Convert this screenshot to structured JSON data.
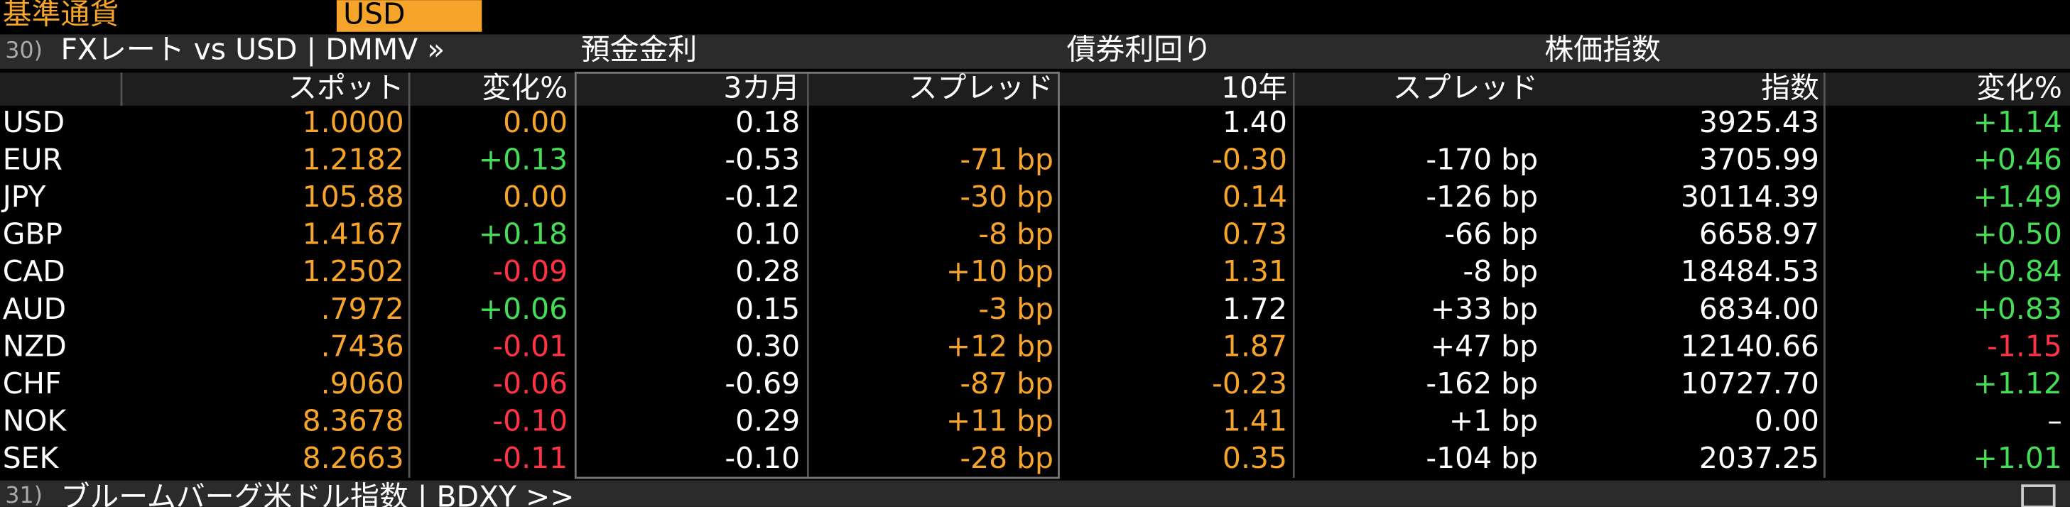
{
  "header": {
    "label": "基準通貨",
    "currency": "USD"
  },
  "sections": {
    "number": "30)",
    "fx": "FXレート vs USD | DMMV »",
    "deposit": "預金金利",
    "bond": "債券利回り",
    "equity": "株価指数"
  },
  "columns": [
    "スポット",
    "変化%",
    "3カ月",
    "スプレッド",
    "10年",
    "スプレッド",
    "指数",
    "変化%"
  ],
  "rows": [
    {
      "currency": "USD",
      "cells": [
        "1.0000",
        "0.00",
        "0.18",
        null,
        "1.40",
        null,
        "3925.43",
        "+1.14"
      ],
      "colors": [
        "#f7a52a",
        "#f7a52a",
        "#ffffff",
        null,
        "#ffffff",
        null,
        "#ffffff",
        "#44dd55"
      ]
    },
    {
      "currency": "EUR",
      "cells": [
        "1.2182",
        "+0.13",
        "-0.53",
        "-71 bp",
        "-0.30",
        "-170 bp",
        "3705.99",
        "+0.46"
      ],
      "colors": [
        "#f7a52a",
        "#44dd55",
        "#ffffff",
        "#f7a52a",
        "#f7a52a",
        "#ffffff",
        "#ffffff",
        "#44dd55"
      ]
    },
    {
      "currency": "JPY",
      "cells": [
        "105.88",
        "0.00",
        "-0.12",
        "-30 bp",
        "0.14",
        "-126 bp",
        "30114.39",
        "+1.49"
      ],
      "colors": [
        "#f7a52a",
        "#f7a52a",
        "#ffffff",
        "#f7a52a",
        "#f7a52a",
        "#ffffff",
        "#ffffff",
        "#44dd55"
      ]
    },
    {
      "currency": "GBP",
      "cells": [
        "1.4167",
        "+0.18",
        "0.10",
        "-8 bp",
        "0.73",
        "-66 bp",
        "6658.97",
        "+0.50"
      ],
      "colors": [
        "#f7a52a",
        "#44dd55",
        "#ffffff",
        "#f7a52a",
        "#f7a52a",
        "#ffffff",
        "#ffffff",
        "#44dd55"
      ]
    },
    {
      "currency": "CAD",
      "cells": [
        "1.2502",
        "-0.09",
        "0.28",
        "+10 bp",
        "1.31",
        "-8 bp",
        "18484.53",
        "+0.84"
      ],
      "colors": [
        "#f7a52a",
        "#ff3344",
        "#ffffff",
        "#f7a52a",
        "#f7a52a",
        "#ffffff",
        "#ffffff",
        "#44dd55"
      ]
    },
    {
      "currency": "AUD",
      "cells": [
        ".7972",
        "+0.06",
        "0.15",
        "-3 bp",
        "1.72",
        "+33 bp",
        "6834.00",
        "+0.83"
      ],
      "colors": [
        "#f7a52a",
        "#44dd55",
        "#ffffff",
        "#f7a52a",
        "#ffffff",
        "#ffffff",
        "#ffffff",
        "#44dd55"
      ]
    },
    {
      "currency": "NZD",
      "cells": [
        ".7436",
        "-0.01",
        "0.30",
        "+12 bp",
        "1.87",
        "+47 bp",
        "12140.66",
        "-1.15"
      ],
      "colors": [
        "#f7a52a",
        "#ff3344",
        "#ffffff",
        "#f7a52a",
        "#f7a52a",
        "#ffffff",
        "#ffffff",
        "#ff3344"
      ]
    },
    {
      "currency": "CHF",
      "cells": [
        ".9060",
        "-0.06",
        "-0.69",
        "-87 bp",
        "-0.23",
        "-162 bp",
        "10727.70",
        "+1.12"
      ],
      "colors": [
        "#f7a52a",
        "#ff3344",
        "#ffffff",
        "#f7a52a",
        "#f7a52a",
        "#ffffff",
        "#ffffff",
        "#44dd55"
      ]
    },
    {
      "currency": "NOK",
      "cells": [
        "8.3678",
        "-0.10",
        "0.29",
        "+11 bp",
        "1.41",
        "+1 bp",
        "0.00",
        "–"
      ],
      "colors": [
        "#f7a52a",
        "#ff3344",
        "#ffffff",
        "#f7a52a",
        "#f7a52a",
        "#ffffff",
        "#ffffff",
        "#ffffff"
      ]
    },
    {
      "currency": "SEK",
      "cells": [
        "8.2663",
        "-0.11",
        "-0.10",
        "-28 bp",
        "0.35",
        "-104 bp",
        "2037.25",
        "+1.01"
      ],
      "colors": [
        "#f7a52a",
        "#ff3344",
        "#ffffff",
        "#f7a52a",
        "#f7a52a",
        "#ffffff",
        "#ffffff",
        "#44dd55"
      ]
    }
  ],
  "footer": {
    "number": "31)",
    "text": "ブルームバーグ米ドル指数 | BDXY >>"
  }
}
